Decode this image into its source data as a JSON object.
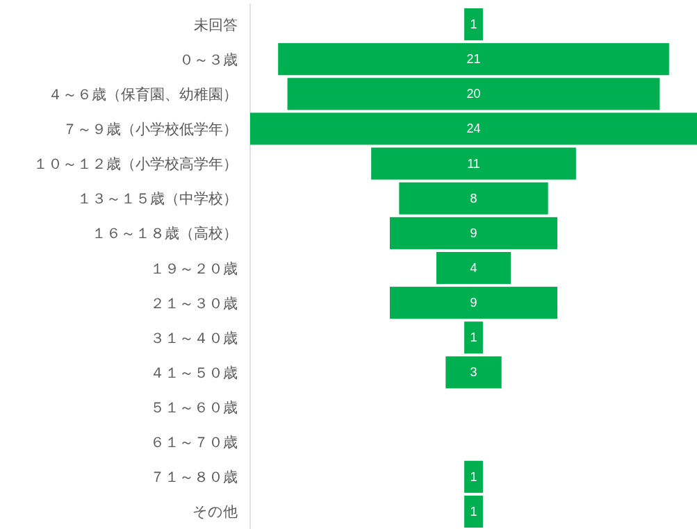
{
  "chart_data": {
    "type": "other",
    "categories": [
      "未回答",
      "０～３歳",
      "４～６歳（保育園、幼稚園）",
      "７～９歳（小学校低学年）",
      "１０～１２歳（小学校高学年）",
      "１３～１５歳（中学校）",
      "１６～１８歳（高校）",
      "１９～２０歳",
      "２１～３０歳",
      "３１～４０歳",
      "４１～５０歳",
      "５１～６０歳",
      "６１～７０歳",
      "７１～８０歳",
      "その他"
    ],
    "values": [
      1,
      21,
      20,
      24,
      11,
      8,
      9,
      4,
      9,
      1,
      3,
      null,
      null,
      1,
      1
    ],
    "color": "#00b050",
    "data_labels": true
  }
}
